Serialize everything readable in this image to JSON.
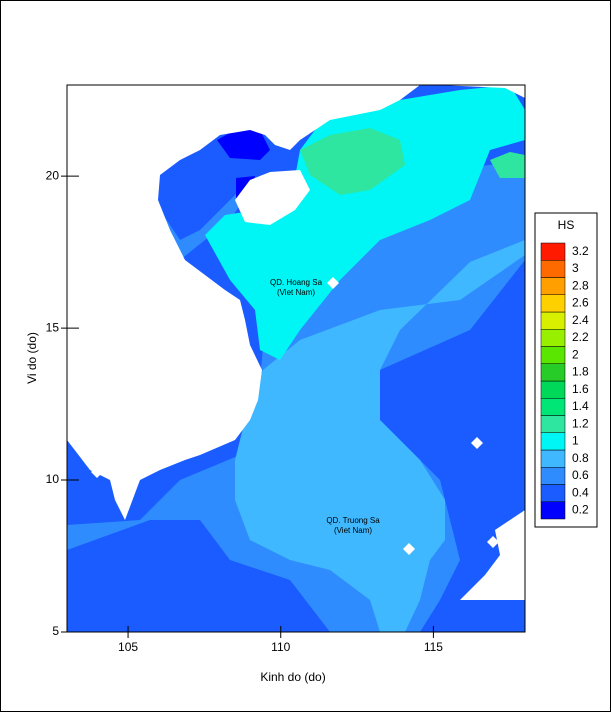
{
  "chart_data": {
    "type": "contour",
    "xlabel": "Kinh do (do)",
    "ylabel": "Vi do (do)",
    "xlim": [
      103,
      118
    ],
    "ylim": [
      5,
      23
    ],
    "xticks": [
      105,
      110,
      115
    ],
    "yticks": [
      5,
      10,
      15,
      20
    ],
    "colorbar": {
      "title": "HS",
      "levels": [
        0.2,
        0.4,
        0.6,
        0.8,
        1,
        1.2,
        1.4,
        1.6,
        1.8,
        2,
        2.2,
        2.4,
        2.6,
        2.8,
        3,
        3.2
      ],
      "colors": [
        "#0000ff",
        "#1a5cff",
        "#2f8cff",
        "#3fb8ff",
        "#00f5f5",
        "#2ee6a0",
        "#00e676",
        "#00d85a",
        "#28cc28",
        "#5ae600",
        "#98f000",
        "#d8f000",
        "#ffd000",
        "#ffa000",
        "#ff6a00",
        "#ff1a00"
      ]
    },
    "annotations": [
      {
        "lines": [
          "QD. Hoang Sa",
          "(Viet Nam)"
        ]
      },
      {
        "lines": [
          "QD. Truong Sa",
          "(Viet Nam)"
        ]
      }
    ]
  }
}
